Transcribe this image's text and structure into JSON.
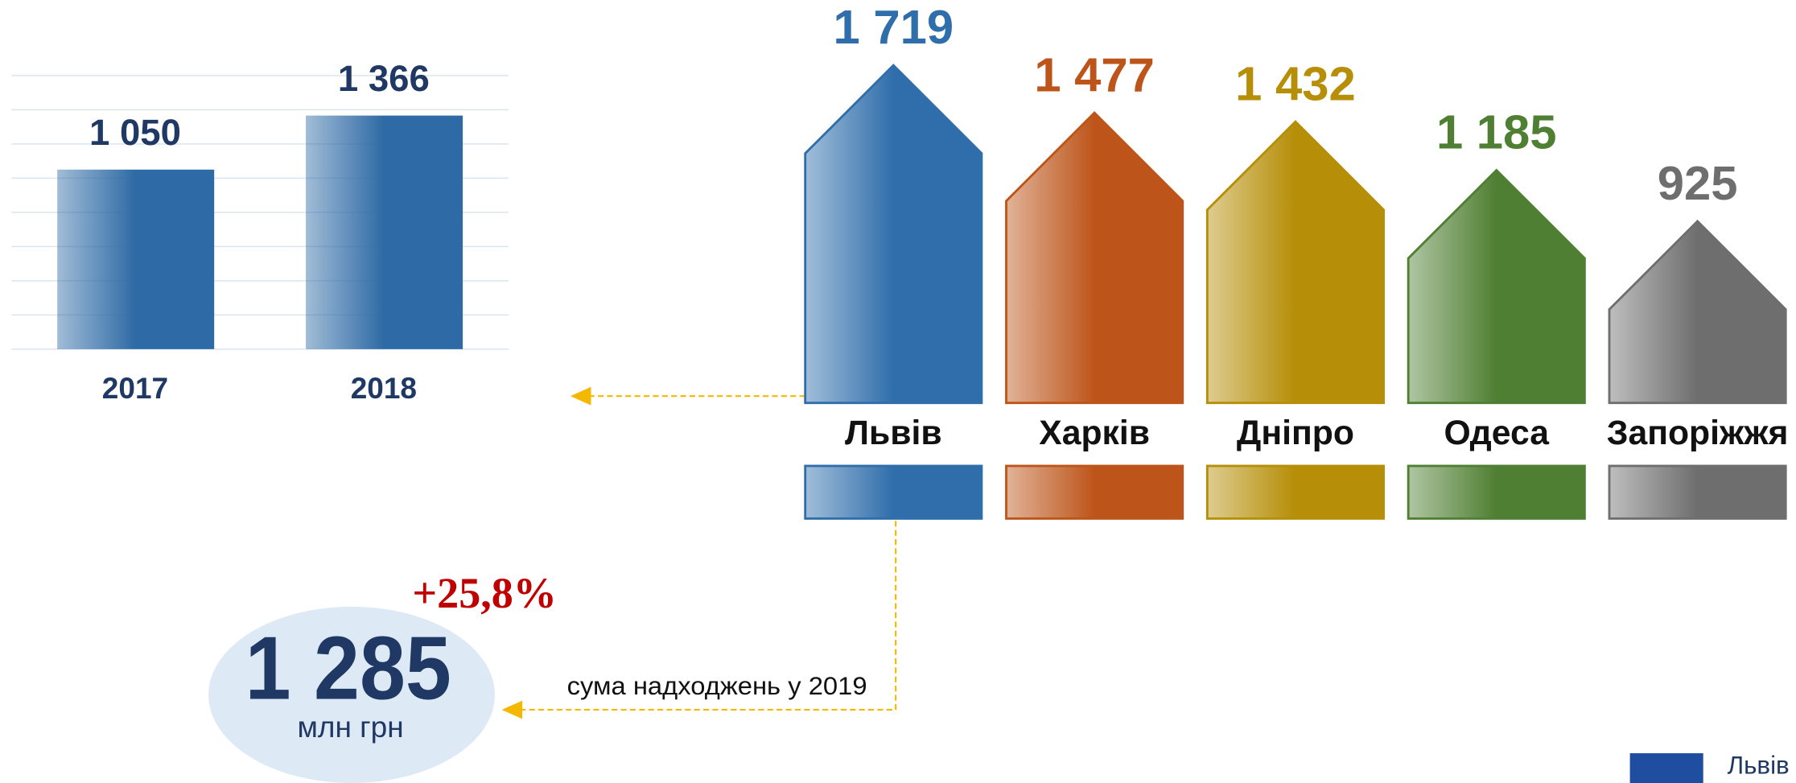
{
  "chart_data": [
    {
      "type": "bar",
      "categories": [
        "2017",
        "2018"
      ],
      "values": [
        1050,
        1366
      ],
      "value_labels": [
        "1 050",
        "1 366"
      ],
      "color": "#2e6aa5",
      "ylim": [
        0,
        1600
      ],
      "yticks": [
        0,
        200,
        400,
        600,
        800,
        1000,
        1200,
        1400,
        1600
      ],
      "grid": true
    },
    {
      "type": "house",
      "categories": [
        "Львів",
        "Харків",
        "Дніпро",
        "Одеса",
        "Запоріжжя"
      ],
      "values": [
        1719,
        1477,
        1432,
        1185,
        925
      ],
      "value_labels": [
        "1 719",
        "1 477",
        "1 432",
        "1 185",
        "925"
      ],
      "colors": [
        "#2f6eab",
        "#bd551a",
        "#b68e08",
        "#4f7f32",
        "#6e6e6e"
      ]
    }
  ],
  "callout": {
    "value_label": "1 285",
    "unit": "млн грн",
    "change": "+25,8%",
    "note": "сума надходжень у 2019"
  },
  "footer": {
    "text": "Львів"
  }
}
